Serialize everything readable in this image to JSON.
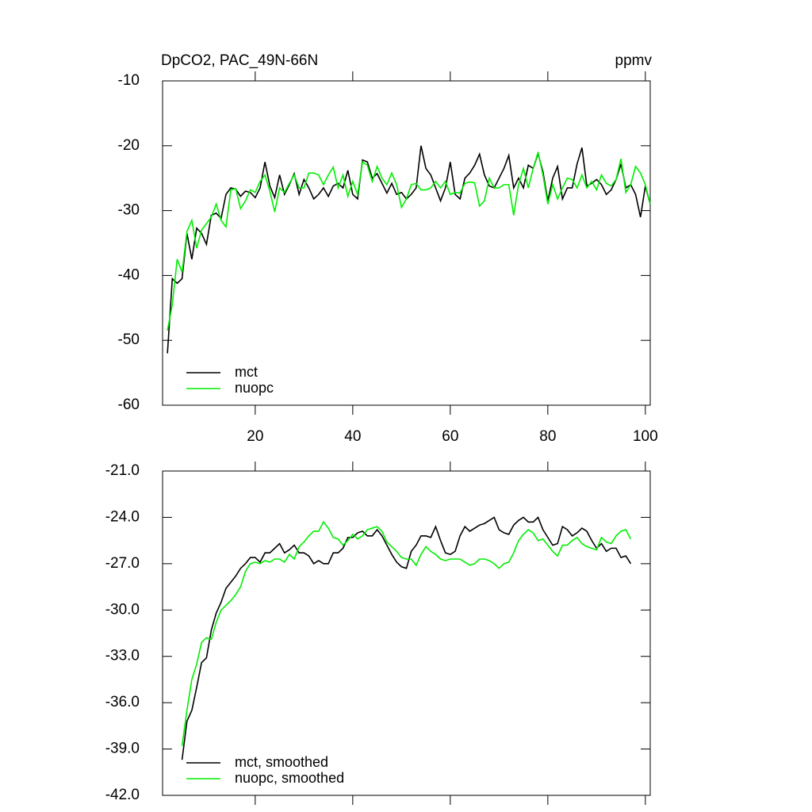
{
  "chart_data": [
    {
      "type": "line",
      "title": "DpCO2, PAC_49N-66N",
      "units": "ppmv",
      "x": [
        2,
        3,
        4,
        5,
        6,
        7,
        8,
        9,
        10,
        11,
        12,
        13,
        14,
        15,
        16,
        17,
        18,
        19,
        20,
        21,
        22,
        23,
        24,
        25,
        26,
        27,
        28,
        29,
        30,
        31,
        32,
        33,
        34,
        35,
        36,
        37,
        38,
        39,
        40,
        41,
        42,
        43,
        44,
        45,
        46,
        47,
        48,
        49,
        50,
        51,
        52,
        53,
        54,
        55,
        56,
        57,
        58,
        59,
        60,
        61,
        62,
        63,
        64,
        65,
        66,
        67,
        68,
        69,
        70,
        71,
        72,
        73,
        74,
        75,
        76,
        77,
        78,
        79,
        80,
        81,
        82,
        83,
        84,
        85,
        86,
        87,
        88,
        89,
        90,
        91,
        92,
        93,
        94,
        95,
        96,
        97,
        98,
        99,
        100,
        101
      ],
      "series": [
        {
          "name": "mct",
          "color": "#000000",
          "values": [
            -52,
            -40.5,
            -41.2,
            -40.5,
            -33.5,
            -37.5,
            -32.7,
            -33.5,
            -35.2,
            -30.7,
            -30.4,
            -31.2,
            -27.5,
            -26.5,
            -26.7,
            -27.8,
            -27,
            -27.2,
            -28,
            -26.5,
            -22.5,
            -26.2,
            -28,
            -24.5,
            -27.5,
            -26,
            -24.3,
            -27.5,
            -25.2,
            -26.5,
            -28.2,
            -27.5,
            -26.5,
            -27.8,
            -26.2,
            -25.8,
            -26.5,
            -23.8,
            -27.5,
            -28.2,
            -22.2,
            -22.5,
            -25,
            -24.3,
            -25.8,
            -27.3,
            -25.8,
            -27.5,
            -27.2,
            -28.2,
            -27.5,
            -26.5,
            -20,
            -23.5,
            -24.5,
            -26.5,
            -28.5,
            -26.5,
            -22.5,
            -27.5,
            -28.2,
            -25,
            -24.2,
            -23,
            -21.3,
            -24.5,
            -26.2,
            -26.5,
            -25,
            -23.5,
            -21.5,
            -26.5,
            -25,
            -26.5,
            -23,
            -23.5,
            -21.2,
            -24,
            -28.5,
            -25,
            -23.2,
            -28.2,
            -26.5,
            -26.5,
            -22.8,
            -20.3,
            -26.2,
            -25.8,
            -25.2,
            -26,
            -27.5,
            -26.8,
            -25.2,
            -22.8,
            -26.5,
            -26,
            -27.5,
            -31,
            -26.2,
            -29
          ]
        },
        {
          "name": "nuopc",
          "color": "#00ee00",
          "values": [
            -48.5,
            -44.5,
            -37.5,
            -39.5,
            -33.2,
            -31.5,
            -35.8,
            -33,
            -32,
            -31,
            -29,
            -31.5,
            -32.5,
            -26.8,
            -26.6,
            -29.7,
            -28.5,
            -26.8,
            -27.2,
            -25.5,
            -24.5,
            -27,
            -30.2,
            -26.5,
            -27.2,
            -25.8,
            -24.5,
            -26.5,
            -26.5,
            -24.2,
            -24.2,
            -24.5,
            -26,
            -24.5,
            -23.3,
            -26.5,
            -24.5,
            -27.8,
            -25.5,
            -27.5,
            -22.5,
            -23,
            -25.5,
            -23.2,
            -25,
            -26,
            -24.2,
            -26,
            -29.5,
            -28.2,
            -26,
            -25.8,
            -26.8,
            -26.8,
            -26.5,
            -25.5,
            -26.5,
            -25.5,
            -27.5,
            -27.2,
            -27.3,
            -25.8,
            -25.6,
            -25.7,
            -29.3,
            -28.5,
            -25,
            -26.5,
            -26.5,
            -26,
            -26,
            -30.7,
            -26,
            -23.5,
            -26.5,
            -23.5,
            -21,
            -24.5,
            -29,
            -26,
            -28.2,
            -26.5,
            -25,
            -25.2,
            -26.5,
            -24.5,
            -26.5,
            -25.5,
            -26.8,
            -24.5,
            -25.8,
            -26.2,
            -25.2,
            -22,
            -27.2,
            -26,
            -23.2,
            -24.2,
            -26,
            -29
          ]
        }
      ],
      "xlim": [
        1,
        101
      ],
      "xticks": [
        20,
        40,
        60,
        80,
        100
      ],
      "ylim": [
        -60,
        -10
      ],
      "yticks": [
        -60,
        -50,
        -40,
        -30,
        -20,
        -10
      ]
    },
    {
      "type": "line",
      "x": [
        5,
        6,
        7,
        8,
        9,
        10,
        11,
        12,
        13,
        14,
        15,
        16,
        17,
        18,
        19,
        20,
        21,
        22,
        23,
        24,
        25,
        26,
        27,
        28,
        29,
        30,
        31,
        32,
        33,
        34,
        35,
        36,
        37,
        38,
        39,
        40,
        41,
        42,
        43,
        44,
        45,
        46,
        47,
        48,
        49,
        50,
        51,
        52,
        53,
        54,
        55,
        56,
        57,
        58,
        59,
        60,
        61,
        62,
        63,
        64,
        65,
        66,
        67,
        68,
        69,
        70,
        71,
        72,
        73,
        74,
        75,
        76,
        77,
        78,
        79,
        80,
        81,
        82,
        83,
        84,
        85,
        86,
        87,
        88,
        89,
        90,
        91,
        92,
        93,
        94,
        95,
        96,
        97
      ],
      "series": [
        {
          "name": "mct, smoothed",
          "color": "#000000",
          "values": [
            -39.7,
            -37.2,
            -36.5,
            -35,
            -33.4,
            -33.1,
            -31.3,
            -30.2,
            -29.5,
            -28.6,
            -28.2,
            -27.8,
            -27.3,
            -27,
            -26.6,
            -26.6,
            -26.9,
            -26.3,
            -26.3,
            -26,
            -25.7,
            -26.3,
            -26.1,
            -25.8,
            -26.3,
            -26.3,
            -26.5,
            -27,
            -26.8,
            -27,
            -27,
            -26.3,
            -26.3,
            -26,
            -25.3,
            -25.3,
            -25,
            -24.9,
            -25.2,
            -25.2,
            -24.8,
            -25.2,
            -25.8,
            -26.4,
            -26.9,
            -27.2,
            -27.3,
            -26.2,
            -25.8,
            -25.2,
            -25.2,
            -25.3,
            -24.6,
            -25.5,
            -26.3,
            -26.4,
            -26.2,
            -25.2,
            -24.6,
            -24.9,
            -24.7,
            -24.5,
            -24.4,
            -24.2,
            -24,
            -24.8,
            -25,
            -25.1,
            -24.5,
            -24.2,
            -24,
            -24.3,
            -24.3,
            -24,
            -24.8,
            -25.3,
            -25.8,
            -25.7,
            -24.6,
            -24.8,
            -25.2,
            -25,
            -24.7,
            -24.9,
            -25.5,
            -26,
            -25.7,
            -26.2,
            -26,
            -26,
            -26.6,
            -26.5,
            -27
          ]
        },
        {
          "name": "nuopc, smoothed",
          "color": "#00ee00",
          "values": [
            -38.8,
            -36.5,
            -34.5,
            -33.5,
            -32.1,
            -31.8,
            -31.9,
            -30.8,
            -30,
            -29.7,
            -29.4,
            -29,
            -28.5,
            -27.5,
            -27,
            -26.9,
            -27,
            -26.8,
            -26.9,
            -26.7,
            -26.7,
            -26.9,
            -26.4,
            -26.7,
            -25.9,
            -25.6,
            -25.2,
            -24.9,
            -24.9,
            -24.3,
            -24.7,
            -25.3,
            -25.4,
            -25.8,
            -25.5,
            -25.1,
            -25.4,
            -25.2,
            -24.8,
            -24.7,
            -24.6,
            -24.9,
            -25.6,
            -25.9,
            -26.2,
            -26.6,
            -26.7,
            -26.7,
            -27.1,
            -26.4,
            -25.9,
            -26.2,
            -26.4,
            -26.7,
            -26.8,
            -26.7,
            -26.7,
            -26.7,
            -26.9,
            -27.1,
            -27,
            -26.7,
            -26.7,
            -26.8,
            -27,
            -27.3,
            -27,
            -26.9,
            -26.3,
            -25.5,
            -25.1,
            -24.8,
            -25,
            -25.5,
            -25.4,
            -25.8,
            -26.2,
            -26.5,
            -25.8,
            -25.8,
            -25.5,
            -25.3,
            -25.7,
            -25.9,
            -26,
            -26.1,
            -25.3,
            -25.6,
            -25.7,
            -25.2,
            -24.9,
            -24.8,
            -25.4
          ]
        }
      ],
      "xlim": [
        1,
        101
      ],
      "ylim": [
        -42,
        -21
      ],
      "yticks": [
        {
          "value": -42,
          "label": "-42.0"
        },
        {
          "value": -39,
          "label": "-39.0"
        },
        {
          "value": -36,
          "label": "-36.0"
        },
        {
          "value": -33,
          "label": "-33.0"
        },
        {
          "value": -30,
          "label": "-30.0"
        },
        {
          "value": -27,
          "label": "-27.0"
        },
        {
          "value": -24,
          "label": "-24.0"
        },
        {
          "value": -21,
          "label": "-21.0"
        }
      ]
    }
  ]
}
